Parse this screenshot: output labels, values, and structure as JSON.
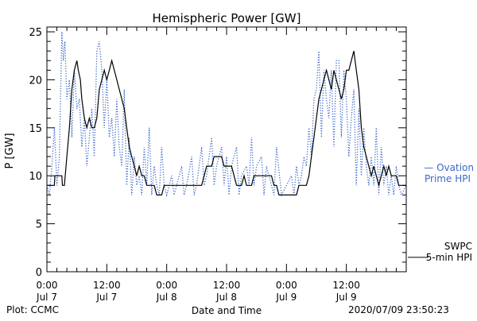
{
  "chart_data": {
    "type": "line",
    "title": "Hemispheric Power [GW]",
    "ylabel": "P [GW]",
    "xlabel": "Date and Time",
    "ylim": [
      0,
      25.5
    ],
    "xlim": [
      0,
      72
    ],
    "yticks": [
      0,
      5,
      10,
      15,
      20,
      25
    ],
    "xticks": [
      {
        "x": 0,
        "time": "0:00",
        "date": "Jul 7"
      },
      {
        "x": 12,
        "time": "12:00",
        "date": "Jul 7"
      },
      {
        "x": 24,
        "time": "0:00",
        "date": "Jul 8"
      },
      {
        "x": 36,
        "time": "12:00",
        "date": "Jul 8"
      },
      {
        "x": 48,
        "time": "0:00",
        "date": "Jul 9"
      },
      {
        "x": 60,
        "time": "12:00",
        "date": "Jul 9"
      }
    ],
    "series": [
      {
        "name": "SWPC 5-min HPI",
        "color": "#000000",
        "style": "solid",
        "points": [
          [
            0,
            9
          ],
          [
            1.5,
            9
          ],
          [
            1.6,
            10
          ],
          [
            3,
            10
          ],
          [
            3.1,
            9
          ],
          [
            3.5,
            9
          ],
          [
            4,
            12
          ],
          [
            4.5,
            15
          ],
          [
            5,
            19
          ],
          [
            5.5,
            21
          ],
          [
            6,
            22
          ],
          [
            6.3,
            21
          ],
          [
            6.7,
            20
          ],
          [
            7,
            18
          ],
          [
            7.5,
            16
          ],
          [
            8,
            15
          ],
          [
            8.5,
            16
          ],
          [
            9,
            15
          ],
          [
            9.5,
            15
          ],
          [
            10,
            16
          ],
          [
            10.5,
            19
          ],
          [
            11,
            20
          ],
          [
            11.5,
            21
          ],
          [
            12,
            20
          ],
          [
            12.5,
            21
          ],
          [
            13,
            22
          ],
          [
            13.5,
            21
          ],
          [
            14,
            20
          ],
          [
            14.5,
            19
          ],
          [
            15,
            18
          ],
          [
            15.5,
            17
          ],
          [
            16,
            15
          ],
          [
            16.5,
            13
          ],
          [
            17,
            12
          ],
          [
            17.5,
            11
          ],
          [
            18,
            10
          ],
          [
            18.5,
            11
          ],
          [
            19,
            10
          ],
          [
            19.5,
            10
          ],
          [
            20,
            9
          ],
          [
            21,
            9
          ],
          [
            21.5,
            9
          ],
          [
            22,
            8
          ],
          [
            23,
            8
          ],
          [
            23.5,
            9
          ],
          [
            30,
            9
          ],
          [
            31,
            9
          ],
          [
            31.5,
            10
          ],
          [
            32,
            11
          ],
          [
            33,
            11
          ],
          [
            33.5,
            12
          ],
          [
            35,
            12
          ],
          [
            35.5,
            11
          ],
          [
            36,
            11
          ],
          [
            37,
            11
          ],
          [
            37.5,
            10
          ],
          [
            38,
            9
          ],
          [
            39,
            9
          ],
          [
            39.5,
            10
          ],
          [
            40,
            9
          ],
          [
            41,
            9
          ],
          [
            41.5,
            10
          ],
          [
            45,
            10
          ],
          [
            45.5,
            9
          ],
          [
            46,
            9
          ],
          [
            46.5,
            8
          ],
          [
            50,
            8
          ],
          [
            50.5,
            9
          ],
          [
            52,
            9
          ],
          [
            52.5,
            10
          ],
          [
            53,
            12
          ],
          [
            53.5,
            14
          ],
          [
            54,
            16
          ],
          [
            54.5,
            18
          ],
          [
            55,
            19
          ],
          [
            55.5,
            20
          ],
          [
            56,
            21
          ],
          [
            56.5,
            20
          ],
          [
            57,
            19
          ],
          [
            57.5,
            21
          ],
          [
            58,
            20
          ],
          [
            58.5,
            19
          ],
          [
            59,
            18
          ],
          [
            59.5,
            19
          ],
          [
            60,
            21
          ],
          [
            60.5,
            21
          ],
          [
            61,
            22
          ],
          [
            61.5,
            23
          ],
          [
            62,
            21
          ],
          [
            62.5,
            19
          ],
          [
            63,
            15
          ],
          [
            63.5,
            13
          ],
          [
            64,
            12
          ],
          [
            64.5,
            11
          ],
          [
            65,
            10
          ],
          [
            65.5,
            11
          ],
          [
            66,
            10
          ],
          [
            66.5,
            9
          ],
          [
            67,
            10
          ],
          [
            67.5,
            11
          ],
          [
            68,
            10
          ],
          [
            68.5,
            11
          ],
          [
            69,
            10
          ],
          [
            70,
            10
          ],
          [
            70.5,
            9
          ],
          [
            72,
            9
          ]
        ]
      },
      {
        "name": "Ovation Prime HPI",
        "color": "#3a68c8",
        "style": "dotted",
        "points": [
          [
            0,
            9
          ],
          [
            0.5,
            8
          ],
          [
            1,
            11
          ],
          [
            1.5,
            15
          ],
          [
            2,
            9
          ],
          [
            2.5,
            12
          ],
          [
            3,
            25
          ],
          [
            3.3,
            22
          ],
          [
            3.6,
            24
          ],
          [
            4,
            18
          ],
          [
            4.5,
            20
          ],
          [
            5,
            14
          ],
          [
            5.5,
            21
          ],
          [
            6,
            17
          ],
          [
            6.5,
            18
          ],
          [
            7,
            13
          ],
          [
            7.5,
            16
          ],
          [
            8,
            11
          ],
          [
            8.5,
            14
          ],
          [
            9,
            17
          ],
          [
            9.5,
            12
          ],
          [
            10,
            23
          ],
          [
            10.5,
            24
          ],
          [
            11,
            21
          ],
          [
            11.5,
            15
          ],
          [
            12,
            20
          ],
          [
            12.5,
            14
          ],
          [
            13,
            16
          ],
          [
            13.5,
            12
          ],
          [
            14,
            18
          ],
          [
            14.5,
            13
          ],
          [
            15,
            11
          ],
          [
            15.5,
            19
          ],
          [
            16,
            9
          ],
          [
            16.5,
            14
          ],
          [
            17,
            8
          ],
          [
            17.5,
            12
          ],
          [
            18,
            9
          ],
          [
            18.5,
            10
          ],
          [
            19,
            8
          ],
          [
            19.5,
            13
          ],
          [
            20,
            9
          ],
          [
            20.5,
            15
          ],
          [
            21,
            8
          ],
          [
            21.5,
            11
          ],
          [
            22,
            9
          ],
          [
            22.5,
            8
          ],
          [
            23,
            13
          ],
          [
            23.5,
            9
          ],
          [
            24,
            8
          ],
          [
            25,
            10
          ],
          [
            25.5,
            8
          ],
          [
            26,
            9
          ],
          [
            27,
            11
          ],
          [
            27.5,
            8
          ],
          [
            28,
            9
          ],
          [
            29,
            12
          ],
          [
            29.5,
            8
          ],
          [
            30,
            9
          ],
          [
            31,
            13
          ],
          [
            31.5,
            9
          ],
          [
            32,
            10
          ],
          [
            33,
            14
          ],
          [
            33.5,
            9
          ],
          [
            34,
            11
          ],
          [
            35,
            13
          ],
          [
            35.5,
            9
          ],
          [
            36,
            12
          ],
          [
            36.5,
            8
          ],
          [
            37,
            11
          ],
          [
            38,
            13
          ],
          [
            38.5,
            8
          ],
          [
            39,
            10
          ],
          [
            40,
            11
          ],
          [
            40.5,
            9
          ],
          [
            41,
            14
          ],
          [
            41.5,
            9
          ],
          [
            42,
            11
          ],
          [
            43,
            12
          ],
          [
            43.5,
            8
          ],
          [
            44,
            11
          ],
          [
            45,
            9
          ],
          [
            45.5,
            8
          ],
          [
            46,
            13
          ],
          [
            47,
            8
          ],
          [
            48,
            9
          ],
          [
            49,
            10
          ],
          [
            49.5,
            8
          ],
          [
            50,
            11
          ],
          [
            50.5,
            9
          ],
          [
            51,
            10
          ],
          [
            51.5,
            12
          ],
          [
            52,
            11
          ],
          [
            52.5,
            15
          ],
          [
            53,
            12
          ],
          [
            53.5,
            18
          ],
          [
            54,
            19
          ],
          [
            54.5,
            23
          ],
          [
            55,
            14
          ],
          [
            55.5,
            21
          ],
          [
            56,
            18
          ],
          [
            56.5,
            16
          ],
          [
            57,
            21
          ],
          [
            57.5,
            13
          ],
          [
            58,
            22
          ],
          [
            58.5,
            22
          ],
          [
            59,
            14
          ],
          [
            59.5,
            21
          ],
          [
            60,
            18
          ],
          [
            60.5,
            12
          ],
          [
            61,
            16
          ],
          [
            61.5,
            19
          ],
          [
            62,
            9
          ],
          [
            62.5,
            17
          ],
          [
            63,
            10
          ],
          [
            63.5,
            15
          ],
          [
            64,
            11
          ],
          [
            64.5,
            9
          ],
          [
            65,
            12
          ],
          [
            65.5,
            9
          ],
          [
            66,
            15
          ],
          [
            66.5,
            8
          ],
          [
            67,
            13
          ],
          [
            67.5,
            9
          ],
          [
            68,
            11
          ],
          [
            68.5,
            8
          ],
          [
            69,
            10
          ],
          [
            69.5,
            8
          ],
          [
            70,
            11
          ],
          [
            70.5,
            9
          ],
          [
            71,
            8
          ],
          [
            72,
            9
          ]
        ]
      }
    ],
    "legend": [
      {
        "series": "Ovation Prime HPI",
        "lines": [
          "— Ovation",
          "Prime HPI"
        ],
        "value": 10.5,
        "color": "#3a68c8"
      },
      {
        "series": "SWPC 5-min HPI",
        "lines": [
          "SWPC",
          "5-min HPI"
        ],
        "value": 1.5,
        "color": "#000000"
      }
    ]
  },
  "footer": {
    "plot_credit": "Plot: CCMC",
    "timestamp": "2020/07/09 23:50:23"
  }
}
